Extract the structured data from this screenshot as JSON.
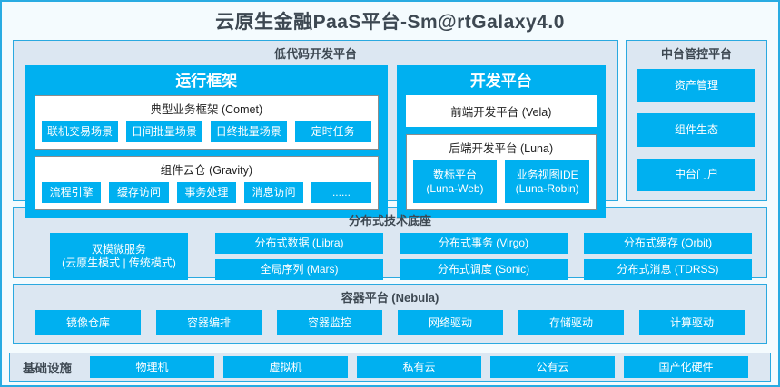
{
  "page_title": "云原生金融PaaS平台-Sm@rtGalaxy4.0",
  "colors": {
    "accent_blue": "#00b0f0",
    "border_blue": "#29abe2",
    "panel_bg": "#dce7f2",
    "page_bg": "#f4fbfe",
    "heading_text": "#3d4852"
  },
  "lowcode_platform": {
    "title": "低代码开发平台",
    "runtime_framework": {
      "title": "运行框架",
      "comet": {
        "title": "典型业务框架 (Comet)",
        "items": [
          "联机交易场景",
          "日间批量场景",
          "日终批量场景",
          "定时任务"
        ]
      },
      "gravity": {
        "title": "组件云仓 (Gravity)",
        "items": [
          "流程引擎",
          "缓存访问",
          "事务处理",
          "消息访问",
          "......"
        ]
      }
    },
    "dev_platform": {
      "title": "开发平台",
      "frontend": "前端开发平台 (Vela)",
      "backend": {
        "title": "后端开发平台 (Luna)",
        "items": [
          {
            "name": "数标平台",
            "code": "(Luna-Web)"
          },
          {
            "name": "业务视图IDE",
            "code": "(Luna-Robin)"
          }
        ]
      }
    }
  },
  "middle_console": {
    "title": "中台管控平台",
    "items": [
      "资产管理",
      "组件生态",
      "中台门户"
    ]
  },
  "distributed_base": {
    "title": "分布式技术底座",
    "dual_mode": {
      "name": "双模微服务",
      "modes": "(云原生模式 | 传统模式)"
    },
    "items": [
      "分布式数据 (Libra)",
      "分布式事务 (Virgo)",
      "分布式缓存 (Orbit)",
      "全局序列 (Mars)",
      "分布式调度 (Sonic)",
      "分布式消息 (TDRSS)"
    ]
  },
  "container_platform": {
    "title": "容器平台 (Nebula)",
    "items": [
      "镜像仓库",
      "容器编排",
      "容器监控",
      "网络驱动",
      "存储驱动",
      "计算驱动"
    ]
  },
  "infrastructure": {
    "label": "基础设施",
    "items": [
      "物理机",
      "虚拟机",
      "私有云",
      "公有云",
      "国产化硬件"
    ]
  }
}
